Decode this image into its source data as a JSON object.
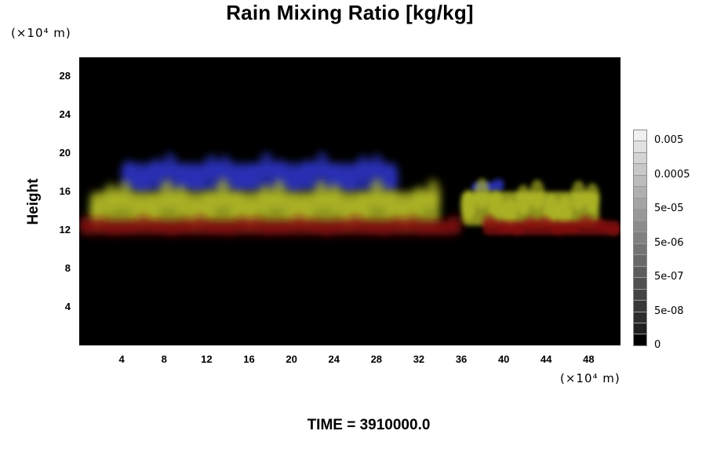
{
  "chart_data": {
    "type": "heatmap",
    "title": "Rain Mixing Ratio [kg/kg]",
    "ylabel": "Height",
    "xlabel": "",
    "x_unit_label": "(×10⁴ m)",
    "y_unit_label": "(×10⁴ m)",
    "x_ticks": [
      "4",
      "8",
      "12",
      "16",
      "20",
      "24",
      "28",
      "32",
      "36",
      "40",
      "44",
      "48"
    ],
    "y_ticks": [
      "4",
      "8",
      "12",
      "16",
      "20",
      "24",
      "28"
    ],
    "xlim": [
      0,
      51
    ],
    "ylim": [
      0,
      30
    ],
    "colorbar": {
      "tick_labels": [
        "0.005",
        "0.0005",
        "5e-05",
        "5e-06",
        "5e-07",
        "5e-08",
        "0"
      ],
      "levels_top_to_bottom": [
        "#f0f0f0",
        "#e0e0e0",
        "#d4d4d4",
        "#c8c8c8",
        "#bcbcbc",
        "#b0b0b0",
        "#a4a4a4",
        "#989898",
        "#8c8c8c",
        "#808080",
        "#747474",
        "#686868",
        "#5c5c5c",
        "#505050",
        "#444444",
        "#383838",
        "#2c2c2c",
        "#202020",
        "#000000"
      ]
    },
    "layers": [
      {
        "color": "#2d35c8",
        "x_range": [
          4,
          30
        ],
        "height_range": [
          16,
          19
        ]
      },
      {
        "color": "#2d35c8",
        "x_range": [
          37,
          40
        ],
        "height_range": [
          16,
          17
        ]
      },
      {
        "color": "#bcc42a",
        "x_range": [
          1,
          34
        ],
        "height_range": [
          12.5,
          16
        ]
      },
      {
        "color": "#bcc42a",
        "x_range": [
          36,
          49
        ],
        "height_range": [
          12.5,
          16
        ]
      },
      {
        "color": "#8c1212",
        "x_range": [
          0,
          36
        ],
        "height_range": [
          11.5,
          13
        ]
      },
      {
        "color": "#8c1212",
        "x_range": [
          38,
          51
        ],
        "height_range": [
          11.5,
          13
        ]
      }
    ],
    "time_label": "TIME = 3910000.0"
  }
}
